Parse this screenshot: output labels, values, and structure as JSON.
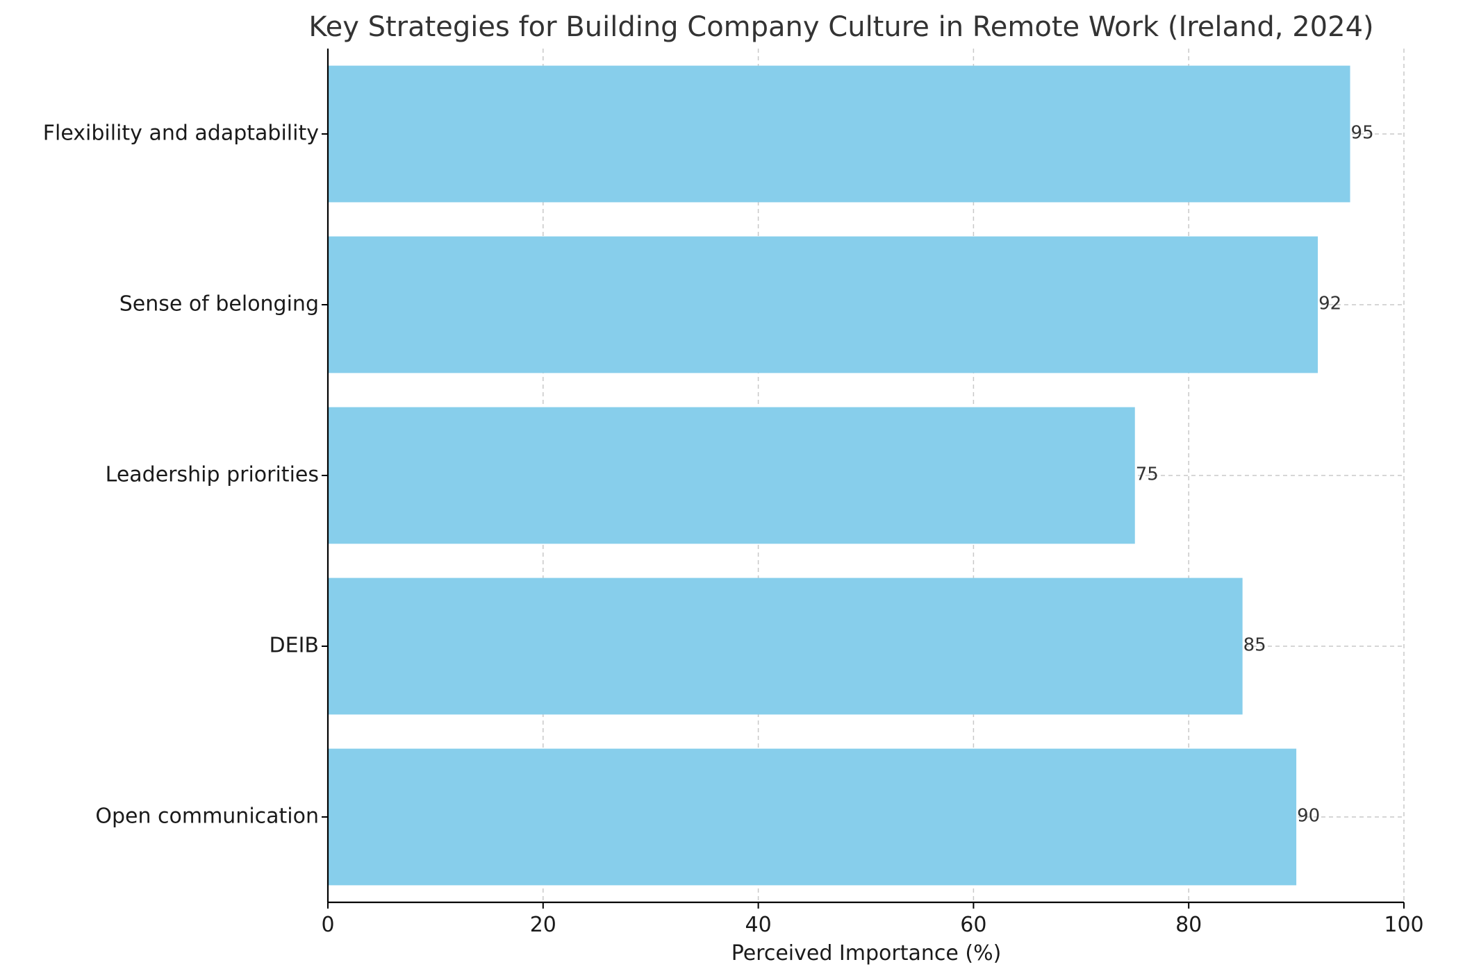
{
  "chart_data": {
    "type": "bar",
    "orientation": "horizontal",
    "title": "Key Strategies for Building Company Culture in Remote Work (Ireland, 2024)",
    "xlabel": "Perceived Importance (%)",
    "ylabel": "",
    "categories": [
      "Open communication",
      "DEIB",
      "Leadership priorities",
      "Sense of belonging",
      "Flexibility and adaptability"
    ],
    "values": [
      90,
      85,
      75,
      92,
      95
    ],
    "xlim": [
      0,
      100
    ],
    "xticks": [
      0,
      20,
      40,
      60,
      80,
      100
    ],
    "grid": true,
    "bar_color": "#87CEEB",
    "data_labels": true
  }
}
